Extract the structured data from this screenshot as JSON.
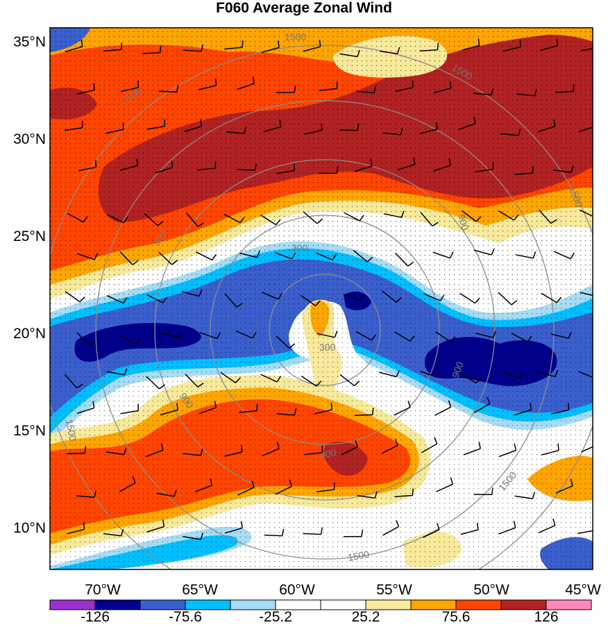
{
  "title": "F060 Average Zonal Wind",
  "latitude_labels": [
    "35°N",
    "30°N",
    "25°N",
    "20°N",
    "15°N",
    "10°N"
  ],
  "longitude_labels": [
    "70°W",
    "65°W",
    "60°W",
    "55°W",
    "50°W",
    "45°W"
  ],
  "colorbar": {
    "tick_labels": [
      "-126",
      "-75.6",
      "-25.2",
      "25.2",
      "75.6",
      "126"
    ],
    "colors": [
      "#9b32cd",
      "#00008b",
      "#3a5fcd",
      "#00bfff",
      "#a6dcf5",
      "#ffffff",
      "#ffffff",
      "#f8ea9a",
      "#ffa500",
      "#ff4500",
      "#b22222",
      "#ff88b8"
    ]
  },
  "contour_labels": [
    "1500",
    "1500",
    "1500",
    "1500",
    "900",
    "900",
    "900",
    "900",
    "900",
    "300",
    "300",
    "1500",
    "1500",
    "1500"
  ],
  "colors": {
    "background": "#ffffff",
    "contour": "#8c8c8c",
    "stipple": "#000000"
  }
}
